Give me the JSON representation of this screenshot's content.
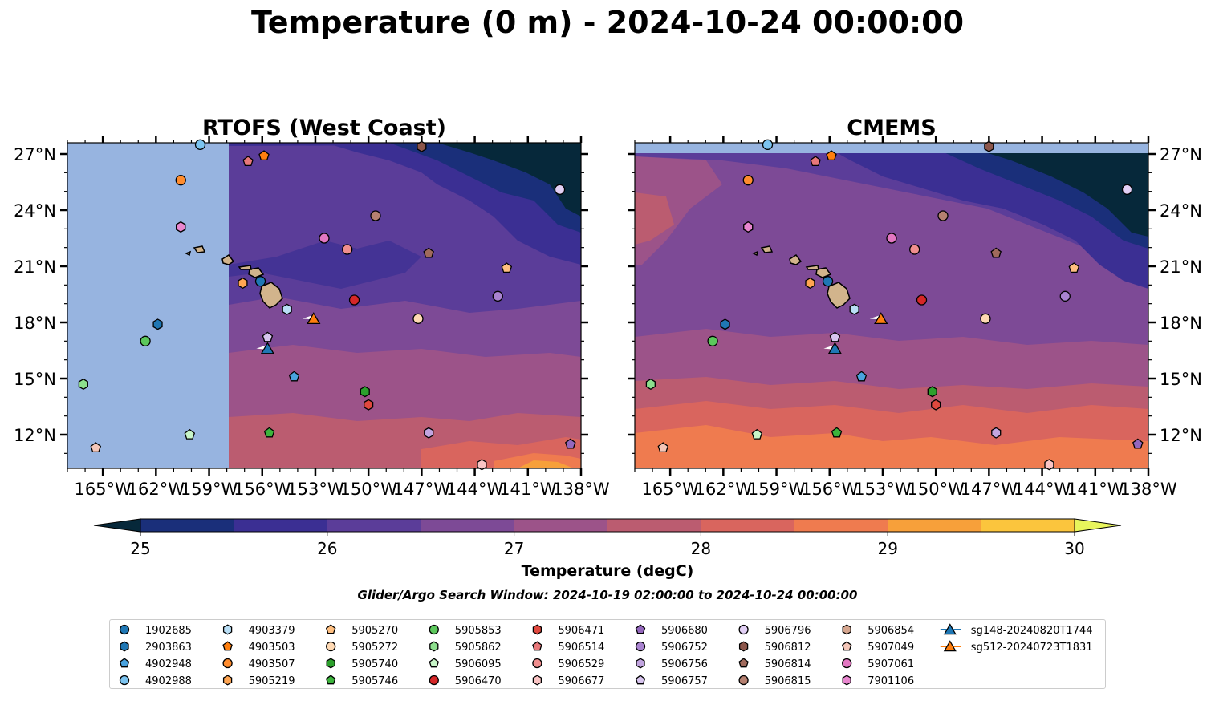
{
  "title": "Temperature (0 m) - 2024-10-24 00:00:00",
  "panels": [
    {
      "title": "RTOFS (West Coast)",
      "lat_labels_side": "left",
      "model_west_limit_lon": -157.2
    },
    {
      "title": "CMEMS",
      "lat_labels_side": "right",
      "model_north_limit_lat": 27.0
    }
  ],
  "map_extent": {
    "lon_min": -167,
    "lon_max": -138,
    "lat_min": 10.2,
    "lat_max": 27.6
  },
  "lon_ticks": [
    {
      "value": -165,
      "label": "165°W"
    },
    {
      "value": -162,
      "label": "162°W"
    },
    {
      "value": -159,
      "label": "159°W"
    },
    {
      "value": -156,
      "label": "156°W"
    },
    {
      "value": -153,
      "label": "153°W"
    },
    {
      "value": -150,
      "label": "150°W"
    },
    {
      "value": -147,
      "label": "147°W"
    },
    {
      "value": -144,
      "label": "144°W"
    },
    {
      "value": -141,
      "label": "141°W"
    },
    {
      "value": -138,
      "label": "138°W"
    }
  ],
  "lat_ticks": [
    {
      "value": 27,
      "label": "27°N"
    },
    {
      "value": 24,
      "label": "24°N"
    },
    {
      "value": 21,
      "label": "21°N"
    },
    {
      "value": 18,
      "label": "18°N"
    },
    {
      "value": 15,
      "label": "15°N"
    },
    {
      "value": 12,
      "label": "12°N"
    }
  ],
  "colorbar": {
    "label": "Temperature (degC)",
    "min": 25,
    "max": 30,
    "step": 0.5,
    "tick_labels": [
      "25",
      "26",
      "27",
      "28",
      "29",
      "30"
    ],
    "extend": "both",
    "colors": [
      "#06283a",
      "#1a2f7a",
      "#3b2f93",
      "#5b3d99",
      "#7d4a96",
      "#9c5389",
      "#bb5c70",
      "#d9655e",
      "#ef7b4f",
      "#f7a03a",
      "#fbc53d",
      "#e8f55c"
    ]
  },
  "land_color": "#d2b48c",
  "nodata_color": "#97b4e0",
  "search_window": "Glider/Argo Search Window: 2024-10-19 02:00:00 to 2024-10-24 00:00:00",
  "platforms": [
    {
      "id": "1902685",
      "marker": "circle",
      "color": "#1f77b4",
      "lon": -156.1,
      "lat": 20.2
    },
    {
      "id": "2903863",
      "marker": "hexagon",
      "color": "#1f77b4",
      "lon": -161.9,
      "lat": 17.9
    },
    {
      "id": "4902948",
      "marker": "pentagon",
      "color": "#4aa3df",
      "lon": -154.2,
      "lat": 15.1
    },
    {
      "id": "4902988",
      "marker": "circle",
      "color": "#7cc4f0",
      "lon": -159.5,
      "lat": 27.5
    },
    {
      "id": "4903379",
      "marker": "hexagon",
      "color": "#b9def5",
      "lon": -154.6,
      "lat": 18.7
    },
    {
      "id": "4903503",
      "marker": "pentagon",
      "color": "#ff7f0e",
      "lon": -155.9,
      "lat": 26.9
    },
    {
      "id": "4903507",
      "marker": "circle",
      "color": "#ff8c2e",
      "lon": -160.6,
      "lat": 25.6
    },
    {
      "id": "5905219",
      "marker": "hexagon",
      "color": "#ffa552",
      "lon": -157.1,
      "lat": 20.1
    },
    {
      "id": "5905270",
      "marker": "pentagon",
      "color": "#ffbf80",
      "lon": -142.2,
      "lat": 20.9
    },
    {
      "id": "5905272",
      "marker": "circle",
      "color": "#ffd9b3",
      "lon": -147.2,
      "lat": 18.2
    },
    {
      "id": "5905740",
      "marker": "hexagon",
      "color": "#2ca02c",
      "lon": -150.2,
      "lat": 14.3
    },
    {
      "id": "5905746",
      "marker": "pentagon",
      "color": "#3cb43c",
      "lon": -155.6,
      "lat": 12.1
    },
    {
      "id": "5905853",
      "marker": "circle",
      "color": "#5cc85c",
      "lon": -162.6,
      "lat": 17.0
    },
    {
      "id": "5905862",
      "marker": "hexagon",
      "color": "#8ddf8d",
      "lon": -166.1,
      "lat": 14.7
    },
    {
      "id": "5906095",
      "marker": "pentagon",
      "color": "#c8f5c8",
      "lon": -160.1,
      "lat": 12.0
    },
    {
      "id": "5906470",
      "marker": "circle",
      "color": "#d62728",
      "lon": -150.8,
      "lat": 19.2
    },
    {
      "id": "5906471",
      "marker": "hexagon",
      "color": "#e0483e",
      "lon": -150.0,
      "lat": 13.6
    },
    {
      "id": "5906514",
      "marker": "pentagon",
      "color": "#e8787a",
      "lon": -156.8,
      "lat": 26.6
    },
    {
      "id": "5906529",
      "marker": "circle",
      "color": "#f08e8e",
      "lon": -151.2,
      "lat": 21.9
    },
    {
      "id": "5906677",
      "marker": "hexagon",
      "color": "#fac4c4",
      "lon": -143.6,
      "lat": 10.4
    },
    {
      "id": "5906680",
      "marker": "pentagon",
      "color": "#9467bd",
      "lon": -138.6,
      "lat": 11.5
    },
    {
      "id": "5906752",
      "marker": "circle",
      "color": "#a983d0",
      "lon": -142.7,
      "lat": 19.4
    },
    {
      "id": "5906756",
      "marker": "hexagon",
      "color": "#c2a5e0",
      "lon": -146.6,
      "lat": 12.1
    },
    {
      "id": "5906757",
      "marker": "pentagon",
      "color": "#d8c5ef",
      "lon": -155.7,
      "lat": 17.2
    },
    {
      "id": "5906796",
      "marker": "circle",
      "color": "#e2d0f5",
      "lon": -139.2,
      "lat": 25.1
    },
    {
      "id": "5906812",
      "marker": "hexagon",
      "color": "#8c564b",
      "lon": -147.0,
      "lat": 27.4
    },
    {
      "id": "5906814",
      "marker": "pentagon",
      "color": "#a06a5c",
      "lon": -146.6,
      "lat": 21.7
    },
    {
      "id": "5906815",
      "marker": "circle",
      "color": "#b58070",
      "lon": -149.6,
      "lat": 23.7
    },
    {
      "id": "5906854",
      "marker": "hexagon",
      "color": "#d5a58e",
      "lon": -160.6,
      "lat": 23.1
    },
    {
      "id": "5907049",
      "marker": "pentagon",
      "color": "#f4c6b8",
      "lon": -165.4,
      "lat": 11.3
    },
    {
      "id": "5907061",
      "marker": "circle",
      "color": "#e377c2",
      "lon": -152.5,
      "lat": 22.5
    },
    {
      "id": "7901106",
      "marker": "hexagon",
      "color": "#e986cf",
      "lon": -160.6,
      "lat": 23.1
    },
    {
      "id": "sg148-20240820T1744",
      "marker": "triangle",
      "color": "#1f77b4",
      "lon": -155.7,
      "lat": 16.6,
      "line": true
    },
    {
      "id": "sg512-20240723T1831",
      "marker": "triangle",
      "color": "#ff7f0e",
      "lon": -153.1,
      "lat": 18.2,
      "line": true
    }
  ]
}
